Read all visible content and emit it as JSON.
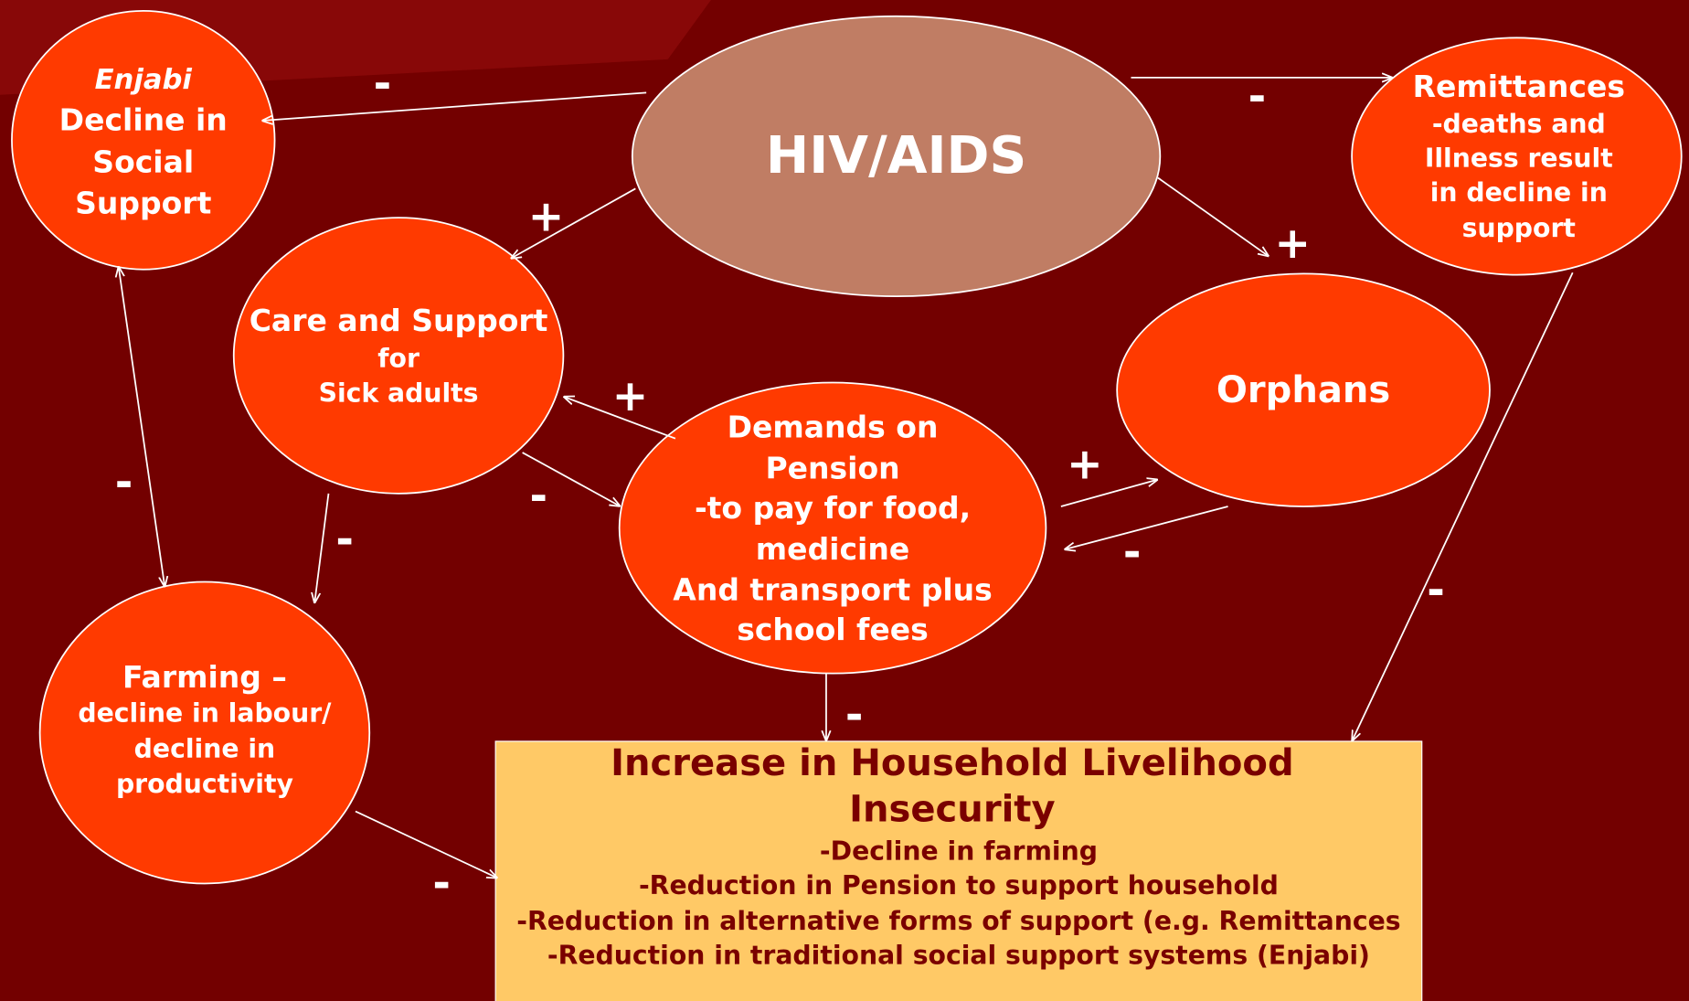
{
  "nodes": {
    "enjabi": [
      "Enjabi",
      "Decline in",
      "Social",
      "Support"
    ],
    "hiv": [
      "HIV/AIDS"
    ],
    "remittances": [
      "Remittances",
      "-deaths and",
      "Illness result",
      "in decline in",
      "support"
    ],
    "care": [
      "Care and Support",
      "for",
      "Sick adults"
    ],
    "orphans": [
      "Orphans"
    ],
    "pension": [
      "Demands on",
      "Pension",
      "-to pay for food,",
      "medicine",
      "And transport plus",
      "school fees"
    ],
    "farming": [
      "Farming –",
      "decline in labour/",
      "decline in",
      "productivity"
    ]
  },
  "outcome": {
    "title": [
      "Increase in Household Livelihood",
      "Insecurity"
    ],
    "items": [
      "-Decline in farming",
      "-Reduction in Pension to support household",
      "-Reduction in alternative forms of support (e.g. Remittances",
      "-Reduction in traditional social support systems (Enjabi)"
    ]
  },
  "edge_signs": [
    "-",
    "-",
    "+",
    "+",
    "+",
    "-",
    "+",
    "-",
    "-",
    "-",
    "-",
    "-",
    "-"
  ]
}
